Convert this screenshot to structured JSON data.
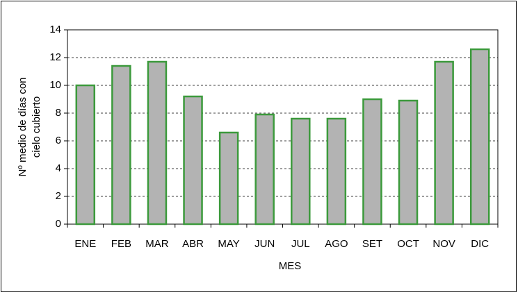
{
  "chart_data": {
    "type": "bar",
    "xlabel": "MES",
    "ylabel": [
      "Nº medio de días con",
      "cielo cubierto"
    ],
    "categories": [
      "ENE",
      "FEB",
      "MAR",
      "ABR",
      "MAY",
      "JUN",
      "JUL",
      "AGO",
      "SET",
      "OCT",
      "NOV",
      "DIC"
    ],
    "values": [
      10,
      11.4,
      11.7,
      9.2,
      6.6,
      7.9,
      7.6,
      7.6,
      9.0,
      8.9,
      11.7,
      12.6
    ],
    "color": "#b3b3b3",
    "edge_color": "#3c9a3c",
    "ylim": [
      0,
      14
    ],
    "yticks": [
      0,
      2,
      4,
      6,
      8,
      10,
      12,
      14
    ],
    "grid": true
  }
}
